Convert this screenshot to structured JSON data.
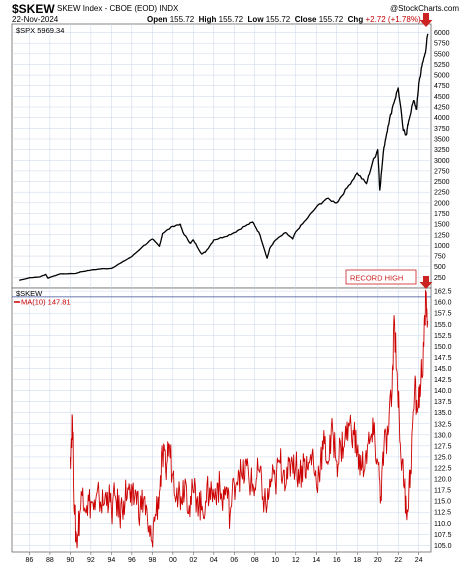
{
  "header": {
    "symbol": "$SKEW",
    "description": "SKEW Index - CBOE (EOD) INDX",
    "brand": "@StockCharts.com",
    "date": "22-Nov-2024",
    "open_label": "Open",
    "open_value": "155.72",
    "high_label": "High",
    "high_value": "155.72",
    "low_label": "Low",
    "low_value": "155.72",
    "close_label": "Close",
    "close_value": "155.72",
    "chg_label": "Chg",
    "chg_value": "+2.72 (+1.78%)"
  },
  "colors": {
    "spx_line": "#000000",
    "skew_line": "#cc0000",
    "grid": "#c9d6ea",
    "record_line": "#3a4a9a",
    "arrow": "#cc2222"
  },
  "chart_data": [
    {
      "type": "line",
      "name": "spx-panel",
      "legend": "$SPX 5969.34",
      "ylim": [
        0,
        6200
      ],
      "yticks": [
        250,
        500,
        750,
        1000,
        1250,
        1500,
        1750,
        2000,
        2250,
        2500,
        2750,
        3000,
        3250,
        3500,
        3750,
        4000,
        4250,
        4500,
        4750,
        5000,
        5250,
        5500,
        5750,
        6000
      ],
      "series": [
        {
          "name": "$SPX",
          "points": [
            [
              1985.0,
              180
            ],
            [
              1986.0,
              240
            ],
            [
              1987.0,
              260
            ],
            [
              1987.6,
              320
            ],
            [
              1987.8,
              230
            ],
            [
              1988.0,
              250
            ],
            [
              1989.0,
              330
            ],
            [
              1990.5,
              340
            ],
            [
              1991.0,
              380
            ],
            [
              1992.0,
              420
            ],
            [
              1993.0,
              450
            ],
            [
              1994.0,
              460
            ],
            [
              1995.0,
              600
            ],
            [
              1996.0,
              740
            ],
            [
              1997.0,
              960
            ],
            [
              1998.0,
              1150
            ],
            [
              1998.7,
              980
            ],
            [
              1999.0,
              1280
            ],
            [
              2000.0,
              1450
            ],
            [
              2000.7,
              1500
            ],
            [
              2001.0,
              1300
            ],
            [
              2001.7,
              1050
            ],
            [
              2002.0,
              1130
            ],
            [
              2002.8,
              800
            ],
            [
              2003.2,
              850
            ],
            [
              2004.0,
              1130
            ],
            [
              2005.0,
              1200
            ],
            [
              2006.0,
              1300
            ],
            [
              2007.0,
              1450
            ],
            [
              2007.8,
              1550
            ],
            [
              2008.5,
              1250
            ],
            [
              2009.2,
              700
            ],
            [
              2009.5,
              950
            ],
            [
              2010.0,
              1120
            ],
            [
              2011.0,
              1300
            ],
            [
              2011.7,
              1150
            ],
            [
              2012.0,
              1320
            ],
            [
              2013.0,
              1600
            ],
            [
              2014.0,
              1900
            ],
            [
              2015.0,
              2100
            ],
            [
              2016.0,
              2000
            ],
            [
              2017.0,
              2350
            ],
            [
              2018.0,
              2700
            ],
            [
              2018.9,
              2450
            ],
            [
              2019.5,
              2950
            ],
            [
              2020.0,
              3250
            ],
            [
              2020.2,
              2300
            ],
            [
              2020.6,
              3300
            ],
            [
              2021.0,
              3800
            ],
            [
              2021.5,
              4300
            ],
            [
              2022.0,
              4700
            ],
            [
              2022.5,
              3700
            ],
            [
              2022.8,
              3600
            ],
            [
              2023.0,
              3900
            ],
            [
              2023.5,
              4400
            ],
            [
              2023.8,
              4200
            ],
            [
              2024.0,
              4800
            ],
            [
              2024.3,
              5200
            ],
            [
              2024.6,
              5500
            ],
            [
              2024.9,
              5969
            ]
          ]
        }
      ]
    },
    {
      "type": "line",
      "name": "skew-panel",
      "legend_symbol": "$SKEW",
      "legend_ma": "MA(10) 147.81",
      "ylim": [
        103.5,
        163.2
      ],
      "yticks": [
        105.0,
        107.5,
        110.0,
        112.5,
        115.0,
        117.5,
        120.0,
        122.5,
        125.0,
        127.5,
        130.0,
        132.5,
        135.0,
        137.5,
        140.0,
        142.5,
        145.0,
        147.5,
        150.0,
        152.5,
        155.0,
        157.5,
        160.0,
        162.5
      ],
      "record_level": 161.2,
      "record_label": "RECORD HIGH",
      "series": [
        {
          "name": "$SKEW",
          "points": [
            [
              1990.0,
              125
            ],
            [
              1990.2,
              134
            ],
            [
              1990.4,
              112
            ],
            [
              1990.6,
              106
            ],
            [
              1990.9,
              112
            ],
            [
              1991.2,
              118
            ],
            [
              1991.6,
              114
            ],
            [
              1992.0,
              115
            ],
            [
              1992.4,
              113
            ],
            [
              1992.8,
              116
            ],
            [
              1993.2,
              114
            ],
            [
              1993.6,
              117
            ],
            [
              1994.0,
              113
            ],
            [
              1994.4,
              116
            ],
            [
              1994.8,
              112
            ],
            [
              1995.2,
              115
            ],
            [
              1995.6,
              118
            ],
            [
              1996.0,
              114
            ],
            [
              1996.4,
              117
            ],
            [
              1996.8,
              113
            ],
            [
              1997.2,
              116
            ],
            [
              1997.6,
              108
            ],
            [
              1997.9,
              106
            ],
            [
              1998.3,
              112
            ],
            [
              1998.7,
              117
            ],
            [
              1999.0,
              125
            ],
            [
              1999.3,
              122
            ],
            [
              1999.6,
              128
            ],
            [
              2000.0,
              121
            ],
            [
              2000.4,
              118
            ],
            [
              2000.8,
              116
            ],
            [
              2001.2,
              120
            ],
            [
              2001.6,
              114
            ],
            [
              2002.0,
              117
            ],
            [
              2002.4,
              116
            ],
            [
              2002.8,
              113
            ],
            [
              2003.2,
              115
            ],
            [
              2003.6,
              118
            ],
            [
              2004.0,
              116
            ],
            [
              2004.4,
              119
            ],
            [
              2004.8,
              115
            ],
            [
              2005.2,
              118
            ],
            [
              2005.6,
              112
            ],
            [
              2006.0,
              119
            ],
            [
              2006.4,
              122
            ],
            [
              2006.8,
              120
            ],
            [
              2007.2,
              123
            ],
            [
              2007.6,
              119
            ],
            [
              2008.0,
              118
            ],
            [
              2008.4,
              122
            ],
            [
              2008.8,
              116
            ],
            [
              2009.2,
              114
            ],
            [
              2009.6,
              120
            ],
            [
              2010.0,
              119
            ],
            [
              2010.4,
              124
            ],
            [
              2010.8,
              122
            ],
            [
              2011.2,
              120
            ],
            [
              2011.6,
              125
            ],
            [
              2012.0,
              123
            ],
            [
              2012.4,
              121
            ],
            [
              2012.8,
              124
            ],
            [
              2013.2,
              122
            ],
            [
              2013.6,
              126
            ],
            [
              2014.0,
              119
            ],
            [
              2014.4,
              124
            ],
            [
              2014.8,
              128
            ],
            [
              2015.2,
              124
            ],
            [
              2015.6,
              131
            ],
            [
              2016.0,
              124
            ],
            [
              2016.4,
              127
            ],
            [
              2016.8,
              129
            ],
            [
              2017.2,
              132
            ],
            [
              2017.6,
              131
            ],
            [
              2018.0,
              126
            ],
            [
              2018.4,
              122
            ],
            [
              2018.8,
              125
            ],
            [
              2019.2,
              128
            ],
            [
              2019.6,
              130
            ],
            [
              2020.0,
              124
            ],
            [
              2020.3,
              116
            ],
            [
              2020.6,
              127
            ],
            [
              2021.0,
              130
            ],
            [
              2021.4,
              140
            ],
            [
              2021.6,
              157
            ],
            [
              2021.9,
              144
            ],
            [
              2022.2,
              128
            ],
            [
              2022.6,
              118
            ],
            [
              2022.9,
              113
            ],
            [
              2023.2,
              122
            ],
            [
              2023.6,
              140
            ],
            [
              2023.9,
              136
            ],
            [
              2024.2,
              142
            ],
            [
              2024.5,
              150
            ],
            [
              2024.7,
              161
            ],
            [
              2024.9,
              155.72
            ]
          ]
        }
      ]
    }
  ],
  "xaxis": {
    "xlim": [
      1984.3,
      2025.2
    ],
    "ticks": [
      1986,
      1988,
      1990,
      1992,
      1994,
      1996,
      1998,
      2000,
      2002,
      2004,
      2006,
      2008,
      2010,
      2012,
      2014,
      2016,
      2018,
      2020,
      2022,
      2024
    ],
    "tick_labels": [
      "86",
      "88",
      "90",
      "92",
      "94",
      "96",
      "98",
      "00",
      "02",
      "04",
      "06",
      "08",
      "10",
      "12",
      "14",
      "16",
      "18",
      "20",
      "22",
      "24"
    ]
  }
}
